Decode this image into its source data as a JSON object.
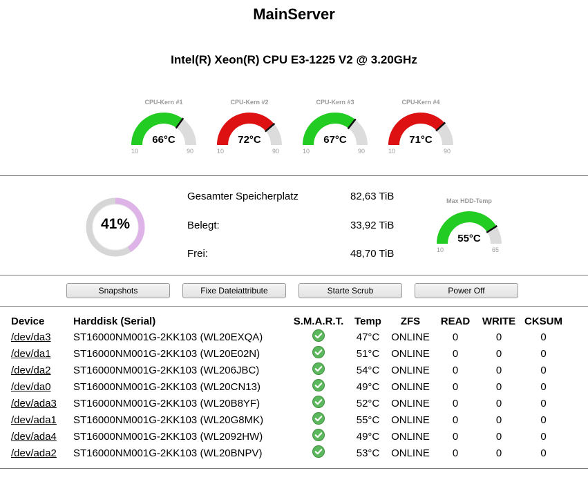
{
  "header": {
    "server_name": "MainServer",
    "cpu_model": "Intel(R) Xeon(R) CPU E3-1225 V2 @ 3.20GHz"
  },
  "cpu_gauges": [
    {
      "label": "CPU-Kern #1",
      "value": 66,
      "value_text": "66°C",
      "min": "10",
      "max": "90",
      "min_value": 10,
      "max_value": 90,
      "fill_color": "#22cc22"
    },
    {
      "label": "CPU-Kern #2",
      "value": 72,
      "value_text": "72°C",
      "min": "10",
      "max": "90",
      "min_value": 10,
      "max_value": 90,
      "fill_color": "#dd1111"
    },
    {
      "label": "CPU-Kern #3",
      "value": 67,
      "value_text": "67°C",
      "min": "10",
      "max": "90",
      "min_value": 10,
      "max_value": 90,
      "fill_color": "#22cc22"
    },
    {
      "label": "CPU-Kern #4",
      "value": 71,
      "value_text": "71°C",
      "min": "10",
      "max": "90",
      "min_value": 10,
      "max_value": 90,
      "fill_color": "#dd1111"
    }
  ],
  "storage": {
    "used_percent": 41,
    "used_percent_text": "41%",
    "ring_color": "#ddb3e8",
    "rows": [
      {
        "label": "Gesamter Speicherplatz",
        "value": "82,63 TiB"
      },
      {
        "label": "Belegt:",
        "value": "33,92 TiB"
      },
      {
        "label": "Frei:",
        "value": "48,70 TiB"
      }
    ]
  },
  "hdd_gauge": {
    "label": "Max HDD-Temp",
    "value": 55,
    "value_text": "55°C",
    "min": "10",
    "max": "65",
    "min_value": 10,
    "max_value": 65,
    "fill_color": "#22cc22"
  },
  "actions": {
    "snapshots": "Snapshots",
    "fix_attributes": "Fixe Dateiattribute",
    "start_scrub": "Starte Scrub",
    "power_off": "Power Off"
  },
  "disk_table": {
    "headers": {
      "device": "Device",
      "harddisk": "Harddisk (Serial)",
      "smart": "S.M.A.R.T.",
      "temp": "Temp",
      "zfs": "ZFS",
      "read": "READ",
      "write": "WRITE",
      "cksum": "CKSUM"
    },
    "smart_ok_color": "#5cb85c",
    "rows": [
      {
        "device": "/dev/da3",
        "disk": "ST16000NM001G-2KK103 (WL20EXQA)",
        "smart": "ok-check-icon",
        "temp": "47°C",
        "zfs": "ONLINE",
        "read": "0",
        "write": "0",
        "cksum": "0"
      },
      {
        "device": "/dev/da1",
        "disk": "ST16000NM001G-2KK103 (WL20E02N)",
        "smart": "ok-check-icon",
        "temp": "51°C",
        "zfs": "ONLINE",
        "read": "0",
        "write": "0",
        "cksum": "0"
      },
      {
        "device": "/dev/da2",
        "disk": "ST16000NM001G-2KK103 (WL206JBC)",
        "smart": "ok-check-icon",
        "temp": "54°C",
        "zfs": "ONLINE",
        "read": "0",
        "write": "0",
        "cksum": "0"
      },
      {
        "device": "/dev/da0",
        "disk": "ST16000NM001G-2KK103 (WL20CN13)",
        "smart": "ok-check-icon",
        "temp": "49°C",
        "zfs": "ONLINE",
        "read": "0",
        "write": "0",
        "cksum": "0"
      },
      {
        "device": "/dev/ada3",
        "disk": "ST16000NM001G-2KK103 (WL20B8YF)",
        "smart": "ok-check-icon",
        "temp": "52°C",
        "zfs": "ONLINE",
        "read": "0",
        "write": "0",
        "cksum": "0"
      },
      {
        "device": "/dev/ada1",
        "disk": "ST16000NM001G-2KK103 (WL20G8MK)",
        "smart": "ok-check-icon",
        "temp": "55°C",
        "zfs": "ONLINE",
        "read": "0",
        "write": "0",
        "cksum": "0"
      },
      {
        "device": "/dev/ada4",
        "disk": "ST16000NM001G-2KK103 (WL2092HW)",
        "smart": "ok-check-icon",
        "temp": "49°C",
        "zfs": "ONLINE",
        "read": "0",
        "write": "0",
        "cksum": "0"
      },
      {
        "device": "/dev/ada2",
        "disk": "ST16000NM001G-2KK103 (WL20BNPV)",
        "smart": "ok-check-icon",
        "temp": "53°C",
        "zfs": "ONLINE",
        "read": "0",
        "write": "0",
        "cksum": "0"
      }
    ]
  }
}
